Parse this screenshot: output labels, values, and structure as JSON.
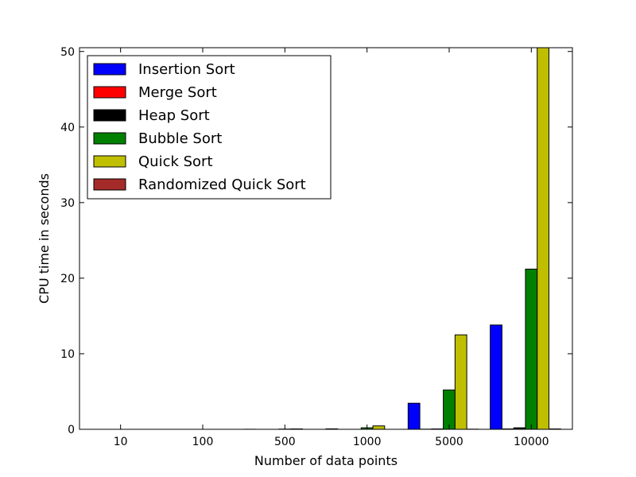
{
  "chart_data": {
    "type": "bar",
    "title": "",
    "xlabel": "Number of data points",
    "ylabel": "CPU time in seconds",
    "ylim": [
      0,
      50.5
    ],
    "yticks": [
      "0",
      "10",
      "20",
      "30",
      "40",
      "50"
    ],
    "categories": [
      "10",
      "100",
      "500",
      "1000",
      "5000",
      "10000"
    ],
    "series": [
      {
        "name": "Insertion Sort",
        "color": "#0000ff",
        "values": [
          0.0,
          0.0,
          0.01,
          0.06,
          3.45,
          13.8
        ]
      },
      {
        "name": "Merge Sort",
        "color": "#ff0000",
        "values": [
          0.0,
          0.0,
          0.0,
          0.0,
          0.02,
          0.05
        ]
      },
      {
        "name": "Heap Sort",
        "color": "#000000",
        "values": [
          0.0,
          0.0,
          0.0,
          0.0,
          0.05,
          0.2
        ]
      },
      {
        "name": "Bubble Sort",
        "color": "#008000",
        "values": [
          0.0,
          0.0,
          0.03,
          0.2,
          5.2,
          21.2
        ]
      },
      {
        "name": "Quick Sort",
        "color": "#bfbf00",
        "values": [
          0.0,
          0.0,
          0.05,
          0.45,
          12.5,
          50.5
        ]
      },
      {
        "name": "Randomized Quick Sort",
        "color": "#a52a2a",
        "values": [
          0.0,
          0.0,
          0.0,
          0.0,
          0.02,
          0.05
        ]
      }
    ],
    "legend": "top-left",
    "grid": false
  }
}
